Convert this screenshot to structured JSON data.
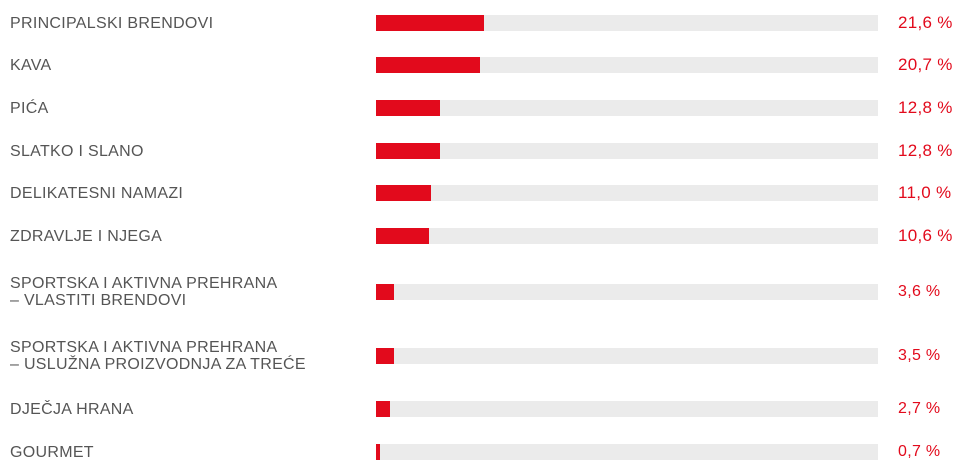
{
  "colors": {
    "bar_fill": "#e20a1c",
    "bar_track": "#ebebeb",
    "label_text": "#555555",
    "value_text": "#e20a1c"
  },
  "chart_data": {
    "type": "bar",
    "orientation": "horizontal",
    "categories": [
      [
        "PRINCIPALSKI BRENDOVI"
      ],
      [
        "KAVA"
      ],
      [
        "PIĆA"
      ],
      [
        "SLATKO I SLANO"
      ],
      [
        "DELIKATESNI NAMAZI"
      ],
      [
        "ZDRAVLJE I NJEGA"
      ],
      [
        "SPORTSKA I AKTIVNA PREHRANA",
        "– VLASTITI BRENDOVI"
      ],
      [
        "SPORTSKA I AKTIVNA PREHRANA",
        "– USLUŽNA PROIZVODNJA ZA TREĆE"
      ],
      [
        "DJEČJA HRANA"
      ],
      [
        "GOURMET"
      ]
    ],
    "values": [
      21.6,
      20.7,
      12.8,
      12.8,
      11.0,
      10.6,
      3.6,
      3.5,
      2.7,
      0.7
    ],
    "value_labels": [
      "21,6 %",
      "20,7 %",
      "12,8 %",
      "12,8 %",
      "11,0 %",
      "10,6 %",
      "3,6 %",
      "3,5 %",
      "2,7 %",
      "0,7 %"
    ],
    "unit": "%",
    "xlim": [
      0,
      100
    ],
    "grid": false,
    "legend": "none"
  }
}
